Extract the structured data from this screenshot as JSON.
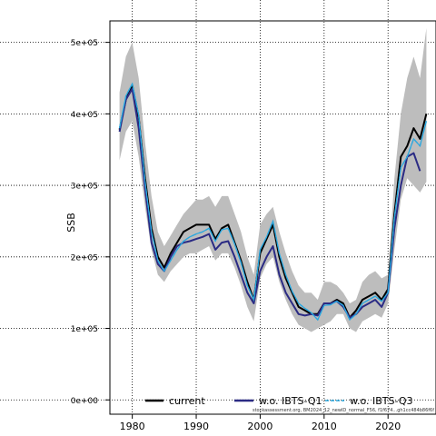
{
  "chart_data": {
    "type": "line",
    "title": "",
    "xlabel": "",
    "ylabel": "SSB",
    "xlim": [
      1976.5,
      2027.5
    ],
    "ylim": [
      -20000,
      530000
    ],
    "x_ticks": [
      1980,
      1990,
      2000,
      2010,
      2020
    ],
    "x_tick_labels": [
      "1980",
      "1990",
      "2000",
      "2010",
      "2020"
    ],
    "y_ticks": [
      0,
      100000,
      200000,
      300000,
      400000,
      500000
    ],
    "y_tick_labels": [
      "0e+00",
      "1e+05",
      "2e+05",
      "3e+05",
      "4e+05",
      "5e+05"
    ],
    "grid": true,
    "legend_position": "bottom",
    "footnote": "stockassessment.org, BM2024_12_newID_normal_F56, f1f674...gh1cc484b86f6f",
    "confidence_band": {
      "x": [
        1978,
        1979,
        1980,
        1981,
        1982,
        1983,
        1984,
        1985,
        1986,
        1987,
        1988,
        1989,
        1990,
        1991,
        1992,
        1993,
        1994,
        1995,
        1996,
        1997,
        1998,
        1999,
        2000,
        2001,
        2002,
        2003,
        2004,
        2005,
        2006,
        2007,
        2008,
        2009,
        2010,
        2011,
        2012,
        2013,
        2014,
        2015,
        2016,
        2017,
        2018,
        2019,
        2020,
        2021,
        2022,
        2023,
        2024,
        2025,
        2026
      ],
      "lower": [
        335000,
        375000,
        390000,
        340000,
        270000,
        210000,
        175000,
        165000,
        180000,
        190000,
        200000,
        205000,
        205000,
        210000,
        215000,
        195000,
        205000,
        205000,
        185000,
        160000,
        130000,
        110000,
        170000,
        190000,
        200000,
        165000,
        140000,
        120000,
        105000,
        100000,
        95000,
        100000,
        105000,
        110000,
        120000,
        120000,
        100000,
        95000,
        110000,
        115000,
        120000,
        115000,
        135000,
        210000,
        280000,
        310000,
        300000,
        290000,
        305000
      ],
      "upper": [
        430000,
        480000,
        500000,
        450000,
        360000,
        285000,
        235000,
        215000,
        230000,
        245000,
        260000,
        270000,
        280000,
        280000,
        285000,
        270000,
        285000,
        285000,
        260000,
        235000,
        200000,
        175000,
        245000,
        260000,
        270000,
        235000,
        205000,
        180000,
        160000,
        150000,
        150000,
        140000,
        165000,
        165000,
        160000,
        150000,
        135000,
        140000,
        165000,
        175000,
        180000,
        170000,
        175000,
        310000,
        400000,
        450000,
        480000,
        450000,
        520000
      ]
    },
    "series": [
      {
        "name": "current",
        "color": "#000000",
        "x": [
          1978,
          1979,
          1980,
          1981,
          1982,
          1983,
          1984,
          1985,
          1986,
          1987,
          1988,
          1989,
          1990,
          1991,
          1992,
          1993,
          1994,
          1995,
          1996,
          1997,
          1998,
          1999,
          2000,
          2001,
          2002,
          2003,
          2004,
          2005,
          2006,
          2007,
          2008,
          2009,
          2010,
          2011,
          2012,
          2013,
          2014,
          2015,
          2016,
          2017,
          2018,
          2019,
          2020,
          2021,
          2022,
          2023,
          2024,
          2025,
          2026
        ],
        "values": [
          378000,
          420000,
          440000,
          395000,
          310000,
          240000,
          200000,
          185000,
          205000,
          220000,
          235000,
          240000,
          245000,
          245000,
          245000,
          225000,
          240000,
          245000,
          220000,
          195000,
          165000,
          140000,
          205000,
          225000,
          245000,
          200000,
          170000,
          150000,
          130000,
          125000,
          120000,
          120000,
          135000,
          135000,
          140000,
          135000,
          115000,
          125000,
          140000,
          145000,
          150000,
          140000,
          155000,
          260000,
          340000,
          355000,
          380000,
          365000,
          400000
        ]
      },
      {
        "name": "w.o. IBTS-Q1",
        "color": "#2b2b84",
        "x": [
          1978,
          1979,
          1980,
          1981,
          1982,
          1983,
          1984,
          1985,
          1986,
          1987,
          1988,
          1989,
          1990,
          1991,
          1992,
          1993,
          1994,
          1995,
          1996,
          1997,
          1998,
          1999,
          2000,
          2001,
          2002,
          2003,
          2004,
          2005,
          2006,
          2007,
          2008,
          2009,
          2010,
          2011,
          2012,
          2013,
          2014,
          2015,
          2016,
          2017,
          2018,
          2019,
          2020,
          2021,
          2022,
          2023,
          2024,
          2025
        ],
        "values": [
          375000,
          420000,
          435000,
          380000,
          295000,
          220000,
          190000,
          180000,
          200000,
          215000,
          220000,
          222000,
          225000,
          228000,
          232000,
          210000,
          220000,
          222000,
          200000,
          175000,
          150000,
          135000,
          180000,
          200000,
          215000,
          175000,
          150000,
          135000,
          120000,
          118000,
          120000,
          118000,
          135000,
          135000,
          138000,
          130000,
          115000,
          120000,
          130000,
          135000,
          140000,
          130000,
          150000,
          240000,
          300000,
          340000,
          345000,
          320000
        ]
      },
      {
        "name": "w.o. IBTS-Q3",
        "color": "#29a8e0",
        "x": [
          1978,
          1979,
          1980,
          1981,
          1982,
          1983,
          1984,
          1985,
          1986,
          1987,
          1988,
          1989,
          1990,
          1991,
          1992,
          1993,
          1994,
          1995,
          1996,
          1997,
          1998,
          1999,
          2000,
          2001,
          2002,
          2003,
          2004,
          2005,
          2006,
          2007,
          2008,
          2009,
          2010,
          2011,
          2012,
          2013,
          2014,
          2015,
          2016,
          2017,
          2018,
          2019,
          2020,
          2021,
          2022,
          2023,
          2024,
          2025,
          2026
        ],
        "values": [
          380000,
          425000,
          442000,
          398000,
          305000,
          235000,
          195000,
          180000,
          195000,
          210000,
          222000,
          228000,
          232000,
          235000,
          240000,
          222000,
          238000,
          240000,
          218000,
          192000,
          160000,
          140000,
          210000,
          228000,
          250000,
          205000,
          175000,
          152000,
          135000,
          128000,
          122000,
          112000,
          132000,
          133000,
          138000,
          132000,
          112000,
          120000,
          135000,
          140000,
          145000,
          138000,
          150000,
          255000,
          325000,
          340000,
          365000,
          355000,
          390000
        ]
      }
    ]
  }
}
